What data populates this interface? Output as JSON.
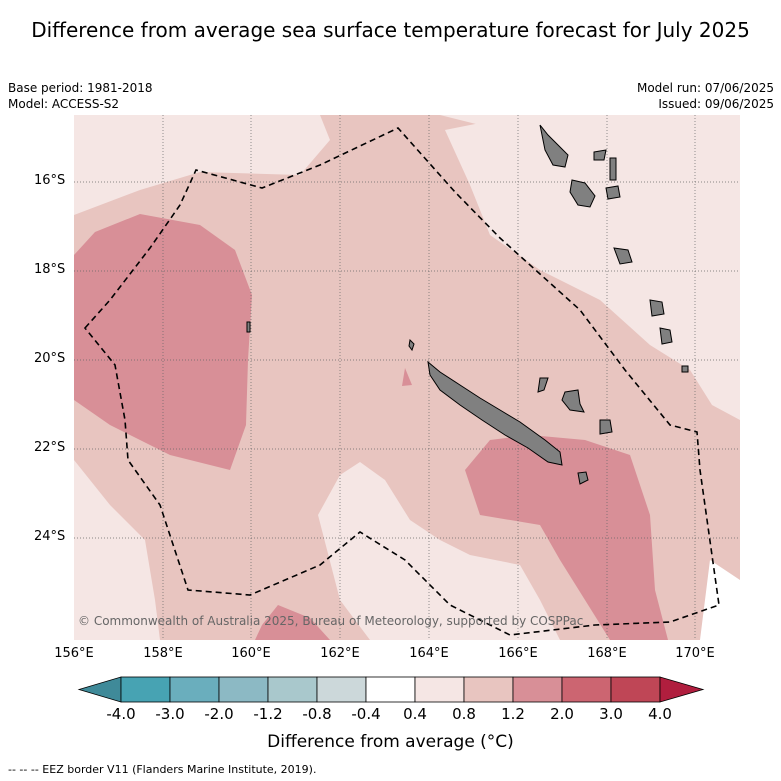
{
  "title": "Difference from average sea surface temperature forecast for July 2025",
  "base_period": "Base period: 1981-2018",
  "model": "Model: ACCESS-S2",
  "model_run": "Model run: 07/06/2025",
  "issued": "Issued: 09/06/2025",
  "credit": "© Commonwealth of Australia 2025, Bureau of Meteorology, supported by COSPPac",
  "eez_note": "--  --  -- EEZ border V11 (Flanders Marine Institute, 2019).",
  "axes": {
    "lon_ticks": [
      "156°E",
      "158°E",
      "160°E",
      "162°E",
      "164°E",
      "166°E",
      "168°E",
      "170°E"
    ],
    "lat_ticks": [
      "16°S",
      "18°S",
      "20°S",
      "22°S",
      "24°S"
    ]
  },
  "colorbar": {
    "title": "Difference from average (°C)",
    "labels": [
      "-4.0",
      "-3.0",
      "-2.0",
      "-1.2",
      "-0.8",
      "-0.4",
      "0.4",
      "0.8",
      "1.2",
      "2.0",
      "3.0",
      "4.0"
    ],
    "colors": [
      "#3f8a99",
      "#47a3b3",
      "#6aaebd",
      "#8cb9c4",
      "#a9c8cc",
      "#ccd8da",
      "#ffffff",
      "#f5e6e4",
      "#e8c5c0",
      "#d88f97",
      "#cc6571",
      "#bf4656",
      "#b01e3e"
    ]
  },
  "legend_note": "anomaly classes shown: 0.4–0.8 °C (lightest pink), 0.8–1.2 °C, 1.2–2.0 °C (darkest pink)"
}
